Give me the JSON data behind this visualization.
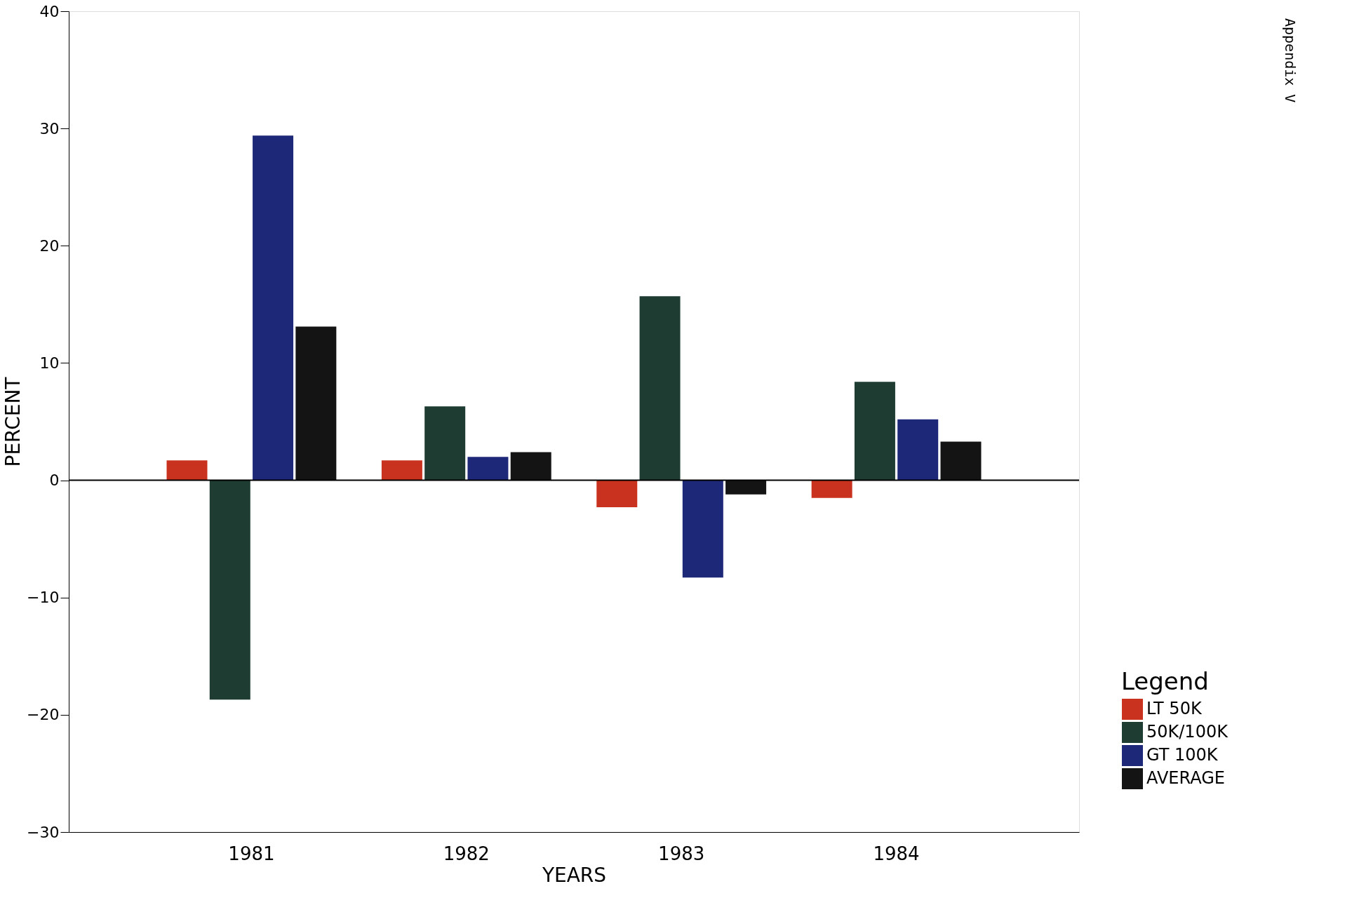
{
  "chart_data": {
    "type": "bar",
    "xlabel": "YEARS",
    "ylabel": "PERCENT",
    "legend_title": "Legend",
    "categories": [
      "1981",
      "1982",
      "1983",
      "1984"
    ],
    "series": [
      {
        "name": "LT 50K",
        "color": "#c8321e",
        "values": [
          1.7,
          1.7,
          -2.3,
          -1.5
        ]
      },
      {
        "name": "50K/100K",
        "color": "#1e3c32",
        "values": [
          -18.7,
          6.3,
          15.7,
          8.4
        ]
      },
      {
        "name": "GT 100K",
        "color": "#1e2878",
        "values": [
          29.4,
          2.0,
          -8.3,
          5.2
        ]
      },
      {
        "name": "AVERAGE",
        "color": "#141414",
        "values": [
          13.1,
          2.4,
          -1.2,
          3.3
        ]
      }
    ],
    "ylim": [
      -30,
      40
    ],
    "yticks": [
      -30,
      -20,
      -10,
      0,
      10,
      20,
      30,
      40
    ],
    "ref_lines": [
      {
        "axis": "y",
        "value": 0,
        "color": "#000000"
      }
    ],
    "annotations": [
      "Appendix V"
    ],
    "grid": false,
    "legend": "bottom right"
  }
}
